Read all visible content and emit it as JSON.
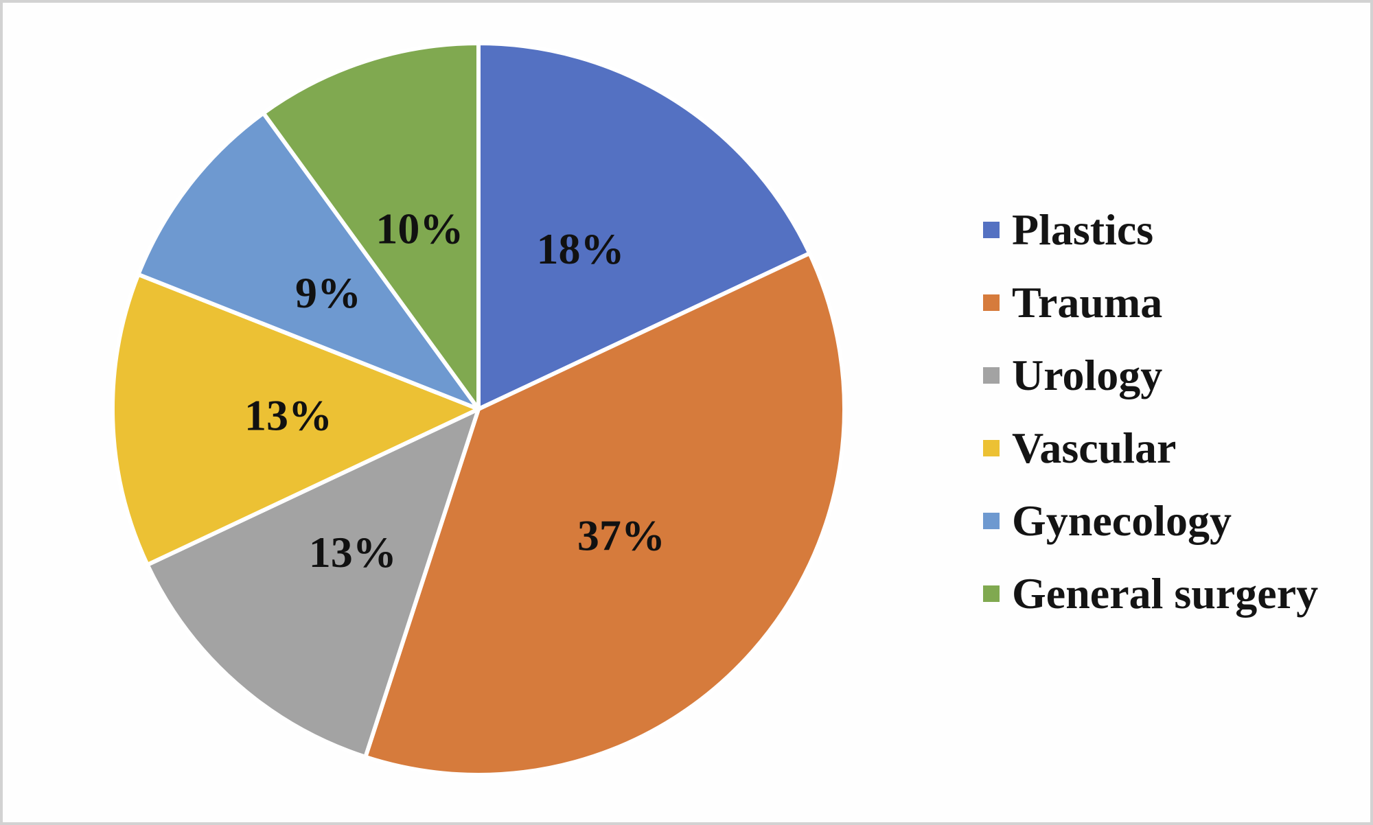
{
  "frame": {
    "background": "#fefefe",
    "border_color": "#d2d2d2"
  },
  "chart_data": {
    "type": "pie",
    "title": "",
    "labels": [
      "Plastics",
      "Trauma",
      "Urology",
      "Vascular",
      "Gynecology",
      "General surgery"
    ],
    "values": [
      18,
      37,
      13,
      13,
      9,
      10
    ],
    "data_labels": [
      "18%",
      "37%",
      "13%",
      "13%",
      "9%",
      "10%"
    ],
    "colors": [
      "#5471C2",
      "#D67B3C",
      "#A3A3A3",
      "#ECC134",
      "#6E99D0",
      "#80A950"
    ],
    "start_angle_deg": 0,
    "direction": "clockwise",
    "slice_border_color": "#ffffff",
    "label_color": "#111111",
    "legend_position": "right",
    "grid": "off"
  }
}
